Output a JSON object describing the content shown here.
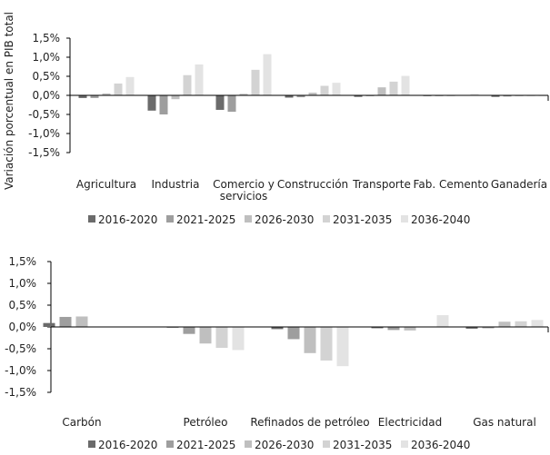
{
  "chart_data": [
    {
      "type": "bar",
      "ylabel": "Variación porcentual en PIB total",
      "ylim": [
        -1.5,
        1.5
      ],
      "yticks": [
        1.5,
        1.0,
        0.5,
        0.0,
        -0.5,
        -1.0,
        -1.5
      ],
      "ytick_labels": [
        "1,5%",
        "1,0%",
        "0,5%",
        "0,0%",
        "-0,5%",
        "-1,0%",
        "-1,5%"
      ],
      "categories": [
        "Agricultura",
        "Industria",
        "Comercio y servicios",
        "Construcción",
        "Transporte",
        "Fab. Cemento",
        "Ganadería"
      ],
      "category_label_lines": [
        [
          "Agricultura"
        ],
        [
          "Industria"
        ],
        [
          "Comercio y",
          "servicios"
        ],
        [
          "Construcción"
        ],
        [
          "Transporte"
        ],
        [
          "Fab. Cemento"
        ],
        [
          "Ganadería"
        ]
      ],
      "series": [
        {
          "name": "2016-2020",
          "color": "#6b6b6b",
          "values": [
            -0.07,
            -0.4,
            -0.38,
            -0.06,
            -0.04,
            -0.01,
            -0.04
          ]
        },
        {
          "name": "2021-2025",
          "color": "#9e9e9e",
          "values": [
            -0.07,
            -0.5,
            -0.43,
            -0.05,
            -0.02,
            -0.01,
            -0.03
          ]
        },
        {
          "name": "2026-2030",
          "color": "#bfbfbf",
          "values": [
            0.05,
            -0.1,
            0.04,
            0.07,
            0.21,
            -0.01,
            -0.02
          ]
        },
        {
          "name": "2031-2035",
          "color": "#d3d3d3",
          "values": [
            0.31,
            0.53,
            0.67,
            0.25,
            0.36,
            0.01,
            -0.01
          ]
        },
        {
          "name": "2036-2040",
          "color": "#e3e3e3",
          "values": [
            0.48,
            0.81,
            1.08,
            0.33,
            0.51,
            0.04,
            0.0
          ]
        }
      ]
    },
    {
      "type": "bar",
      "ylabel": "",
      "ylim": [
        -1.5,
        1.5
      ],
      "yticks": [
        1.5,
        1.0,
        0.5,
        0.0,
        -0.5,
        -1.0,
        -1.5
      ],
      "ytick_labels": [
        "1,5%",
        "1,0%",
        "0,5%",
        "0,0%",
        "-0,5%",
        "-1,0%",
        "-1,5%"
      ],
      "categories": [
        "Carbón",
        "Petróleo",
        "Refinados de petróleo",
        "Electricidad",
        "Gas natural"
      ],
      "category_label_lines": [
        [
          "Carbón"
        ],
        [
          "Petróleo"
        ],
        [
          "Refinados de petróleo"
        ],
        [
          "Electricidad"
        ],
        [
          "Gas natural"
        ]
      ],
      "series": [
        {
          "name": "2016-2020",
          "color": "#6b6b6b",
          "values": [
            0.09,
            -0.01,
            -0.05,
            -0.03,
            -0.04
          ]
        },
        {
          "name": "2021-2025",
          "color": "#9e9e9e",
          "values": [
            0.23,
            -0.16,
            -0.28,
            -0.07,
            -0.03
          ]
        },
        {
          "name": "2026-2030",
          "color": "#bfbfbf",
          "values": [
            0.24,
            -0.38,
            -0.6,
            -0.08,
            0.12
          ]
        },
        {
          "name": "2031-2035",
          "color": "#d3d3d3",
          "values": [
            null,
            -0.48,
            -0.77,
            0.01,
            0.13
          ]
        },
        {
          "name": "2036-2040",
          "color": "#e3e3e3",
          "values": [
            null,
            -0.53,
            -0.9,
            0.27,
            0.16
          ]
        }
      ]
    }
  ]
}
